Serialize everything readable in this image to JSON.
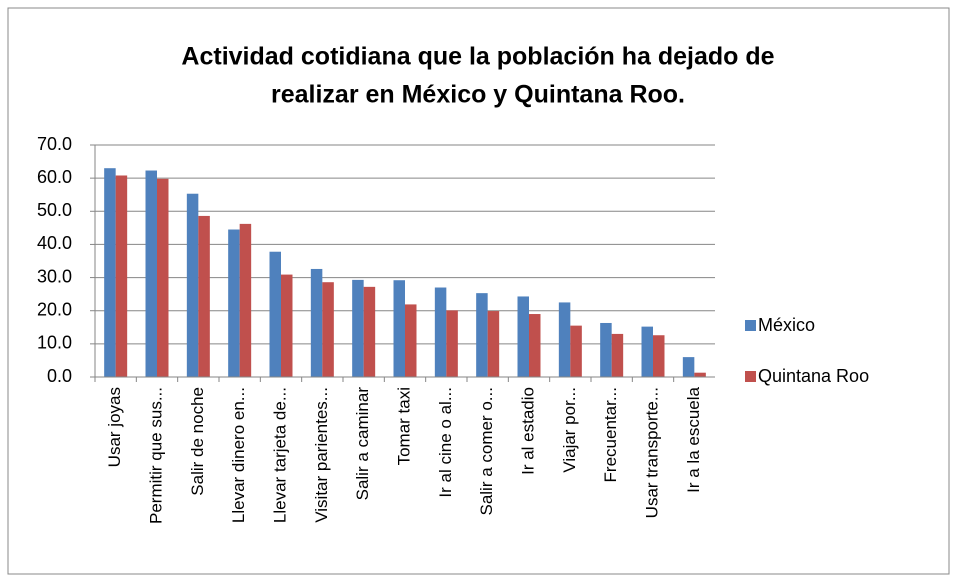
{
  "chart_data": {
    "type": "bar",
    "title": [
      "Actividad cotidiana que la población ha dejado de",
      "realizar en México y Quintana Roo."
    ],
    "categories": [
      "Usar joyas",
      "Permitir que sus...",
      "Salir de noche",
      "Llevar dinero en...",
      "Llevar tarjeta de...",
      "Visitar parientes...",
      "Salir a caminar",
      "Tomar taxi",
      "Ir al cine o al...",
      "Salir a comer o...",
      "Ir al estadio",
      "Viajar por...",
      "Frecuentar...",
      "Usar transporte...",
      "Ir a la escuela"
    ],
    "series": [
      {
        "name": "México",
        "color": "#4f81bd",
        "values": [
          63.0,
          62.3,
          55.3,
          44.5,
          37.8,
          32.6,
          29.3,
          29.2,
          27.0,
          25.3,
          24.3,
          22.5,
          16.3,
          15.2,
          6.0
        ]
      },
      {
        "name": "Quintana Roo",
        "color": "#c0504d",
        "values": [
          60.8,
          59.8,
          48.6,
          46.2,
          30.9,
          28.6,
          27.2,
          21.9,
          20.1,
          19.9,
          19.0,
          15.5,
          13.0,
          12.6,
          1.3
        ]
      }
    ],
    "ylim": [
      0,
      70
    ],
    "yticks": [
      {
        "value": 0,
        "label": "0.0"
      },
      {
        "value": 10,
        "label": "10.0"
      },
      {
        "value": 20,
        "label": "20.0"
      },
      {
        "value": 30,
        "label": "30.0"
      },
      {
        "value": 40,
        "label": "40.0"
      },
      {
        "value": 50,
        "label": "50.0"
      },
      {
        "value": 60,
        "label": "60.0"
      },
      {
        "value": 70,
        "label": "70.0"
      }
    ],
    "grid": true,
    "legend": "right"
  }
}
